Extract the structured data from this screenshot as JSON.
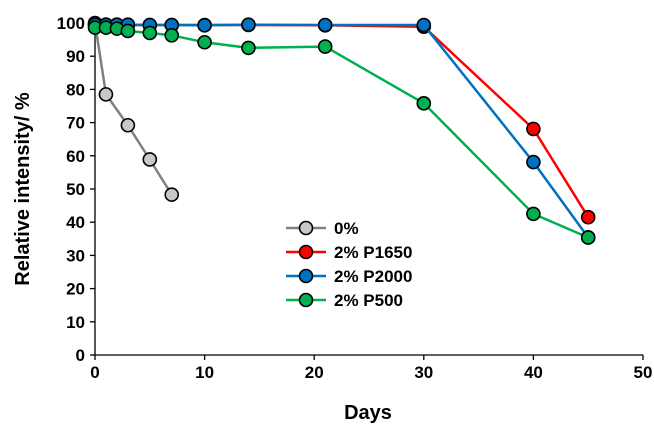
{
  "chart_data": {
    "type": "line",
    "title": "",
    "xlabel": "Days",
    "ylabel": "Relative intensity/ %",
    "xlim": [
      0,
      50
    ],
    "ylim": [
      0,
      100
    ],
    "x_ticks": [
      0,
      10,
      20,
      30,
      40,
      50
    ],
    "y_ticks": [
      0,
      10,
      20,
      30,
      40,
      50,
      60,
      70,
      80,
      90,
      100
    ],
    "grid": false,
    "legend_position": "center",
    "series": [
      {
        "name": "0%",
        "color": "#808080",
        "marker_fill": "#c8c8c8",
        "points": [
          [
            0,
            100
          ],
          [
            1,
            78.5
          ],
          [
            3,
            69.2
          ],
          [
            5,
            58.9
          ],
          [
            7,
            48.3
          ]
        ]
      },
      {
        "name": "2% P1650",
        "color": "#ff0000",
        "marker_fill": "#ff0000",
        "points": [
          [
            0,
            99.5
          ],
          [
            1,
            99.5
          ],
          [
            2,
            99.5
          ],
          [
            3,
            99.4
          ],
          [
            5,
            99.4
          ],
          [
            7,
            99.4
          ],
          [
            10,
            99.4
          ],
          [
            14,
            99.4
          ],
          [
            21,
            99.3
          ],
          [
            30,
            98.9
          ],
          [
            40,
            68.1
          ],
          [
            45,
            41.5
          ]
        ]
      },
      {
        "name": "2% P2000",
        "color": "#0070c0",
        "marker_fill": "#0070c0",
        "points": [
          [
            0,
            99.5
          ],
          [
            1,
            99.5
          ],
          [
            2,
            99.5
          ],
          [
            3,
            99.5
          ],
          [
            5,
            99.4
          ],
          [
            7,
            99.4
          ],
          [
            10,
            99.3
          ],
          [
            14,
            99.5
          ],
          [
            21,
            99.4
          ],
          [
            30,
            99.4
          ],
          [
            40,
            58.1
          ],
          [
            45,
            35.4
          ]
        ]
      },
      {
        "name": "2% P500",
        "color": "#00b050",
        "marker_fill": "#00b050",
        "points": [
          [
            0,
            98.6
          ],
          [
            1,
            98.6
          ],
          [
            2,
            98.3
          ],
          [
            3,
            97.6
          ],
          [
            5,
            97.0
          ],
          [
            7,
            96.3
          ],
          [
            10,
            94.2
          ],
          [
            14,
            92.5
          ],
          [
            21,
            92.9
          ],
          [
            30,
            75.8
          ],
          [
            40,
            42.5
          ],
          [
            45,
            35.4
          ]
        ]
      }
    ]
  }
}
